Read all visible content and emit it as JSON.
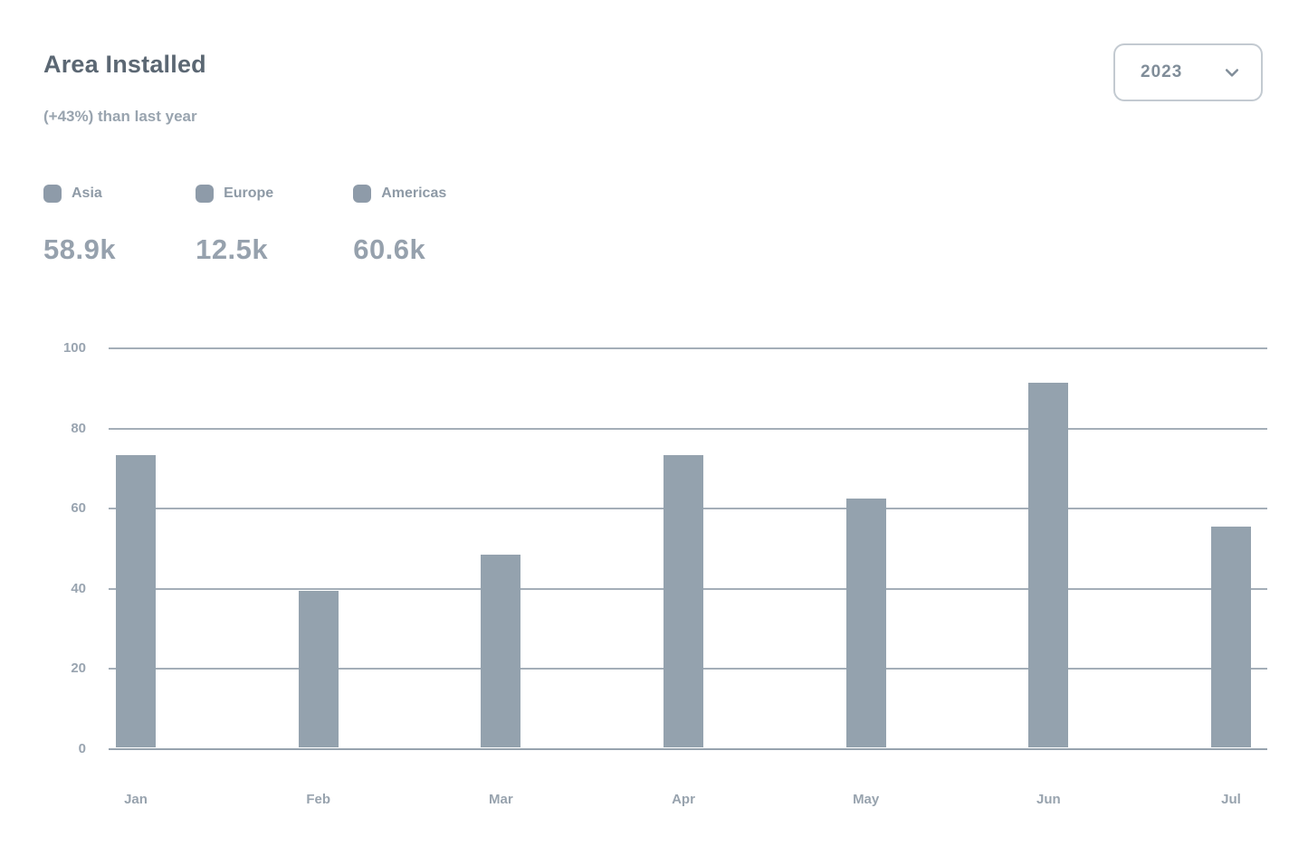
{
  "header": {
    "title": "Area Installed",
    "subtitle": "(+43%) than last year",
    "year_select": {
      "value": "2023",
      "icon": "chevron-down-icon"
    }
  },
  "legend": {
    "items": [
      {
        "label": "Asia",
        "value": "58.9k",
        "marker_color": "#8e9ba9"
      },
      {
        "label": "Europe",
        "value": "12.5k",
        "marker_color": "#8e9ba9"
      },
      {
        "label": "Americas",
        "value": "60.6k",
        "marker_color": "#8e9ba9"
      }
    ]
  },
  "chart_data": {
    "type": "bar",
    "title": "Area Installed",
    "categories": [
      "Jan",
      "Feb",
      "Mar",
      "Apr",
      "May",
      "Jun",
      "Jul"
    ],
    "values": [
      73,
      39,
      48,
      73,
      62,
      91,
      55
    ],
    "xlabel": "",
    "ylabel": "",
    "ylim": [
      0,
      100
    ],
    "yticks": [
      0,
      20,
      40,
      60,
      80,
      100
    ],
    "grid": true,
    "legend_position": "top-left",
    "bar_color": "#94a2ae"
  },
  "colors": {
    "title": "#5b6773",
    "muted_text": "#99a4af",
    "grid": "#9aa5b0",
    "bar": "#94a2ae",
    "select_border": "#919eab"
  }
}
